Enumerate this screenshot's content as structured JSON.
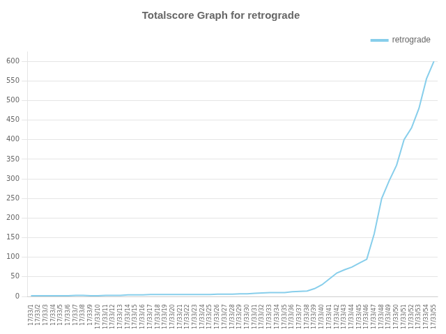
{
  "chart_data": {
    "type": "line",
    "title": "Totalscore Graph for retrograde",
    "categories": [
      "17/33/1",
      "17/33/2",
      "17/33/3",
      "17/33/4",
      "17/33/5",
      "17/33/6",
      "17/33/7",
      "17/33/8",
      "17/33/9",
      "17/33/10",
      "17/33/11",
      "17/33/12",
      "17/33/13",
      "17/33/14",
      "17/33/15",
      "17/33/16",
      "17/33/17",
      "17/33/18",
      "17/33/19",
      "17/33/20",
      "17/33/21",
      "17/33/22",
      "17/33/23",
      "17/33/24",
      "17/33/25",
      "17/33/26",
      "17/33/27",
      "17/33/28",
      "17/33/29",
      "17/33/30",
      "17/33/31",
      "17/33/32",
      "17/33/33",
      "17/33/34",
      "17/33/35",
      "17/33/36",
      "17/33/37",
      "17/33/38",
      "17/33/39",
      "17/33/40",
      "17/33/41",
      "17/33/42",
      "17/33/43",
      "17/33/44",
      "17/33/45",
      "17/33/46",
      "17/33/47",
      "17/33/48",
      "17/33/49",
      "17/33/50",
      "17/33/51",
      "17/33/52",
      "17/33/53",
      "17/33/54",
      "17/33/55"
    ],
    "series": [
      {
        "name": "retrograde",
        "color": "#87CEEB",
        "values": [
          2,
          2,
          2,
          2,
          2,
          2,
          3,
          3,
          2,
          2,
          3,
          3,
          3,
          4,
          4,
          4,
          5,
          5,
          5,
          5,
          5,
          5,
          5,
          5,
          5,
          6,
          6,
          6,
          7,
          7,
          8,
          9,
          10,
          10,
          10,
          12,
          13,
          14,
          20,
          30,
          45,
          60,
          68,
          75,
          85,
          95,
          160,
          250,
          295,
          335,
          400,
          430,
          480,
          555,
          600
        ]
      }
    ],
    "ylim": [
      0,
      625
    ],
    "yticks": [
      0,
      50,
      100,
      150,
      200,
      250,
      300,
      350,
      400,
      450,
      500,
      550,
      600
    ],
    "grid": "y",
    "legend": "upper right"
  }
}
